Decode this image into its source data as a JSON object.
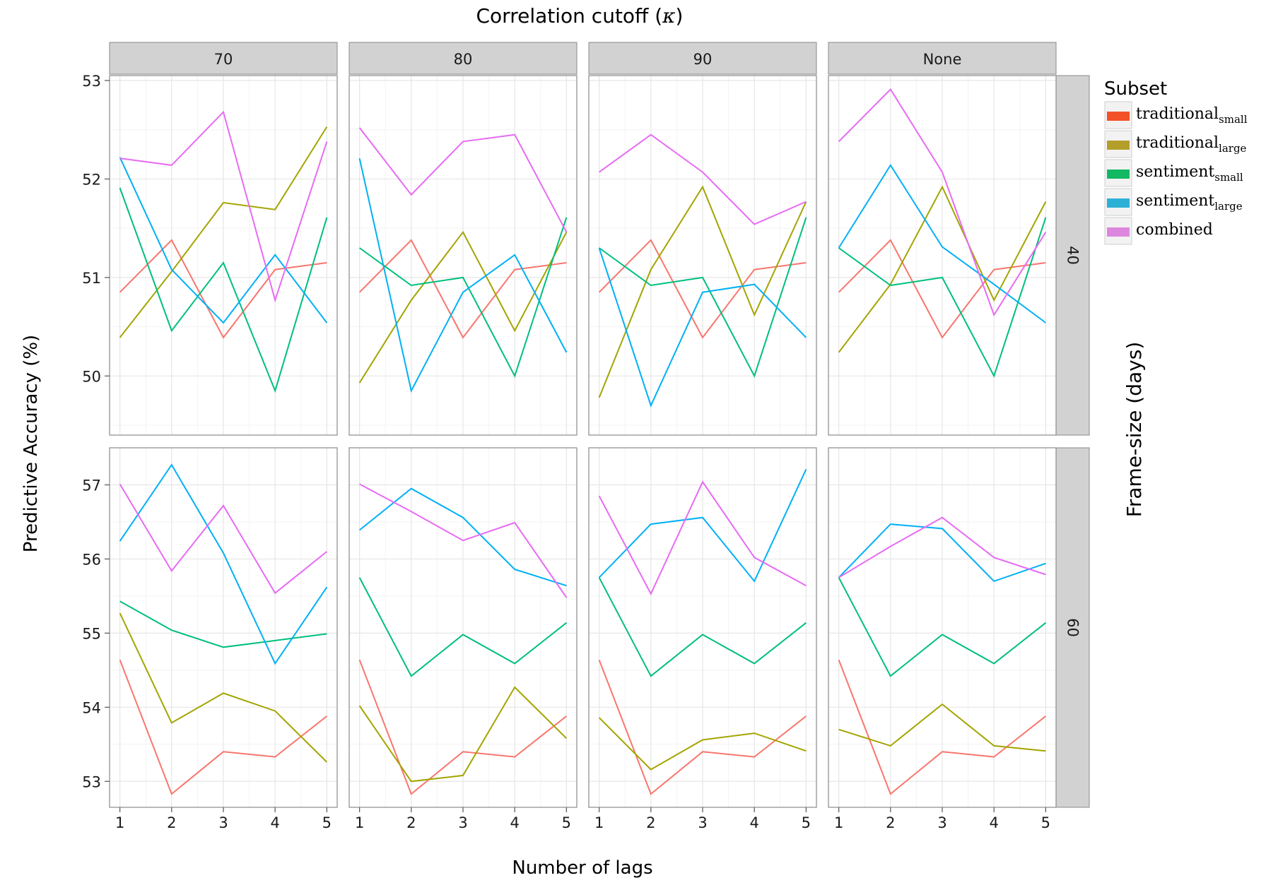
{
  "chart_data": {
    "type": "line",
    "title": "Correlation cutoff (κ)",
    "title_prefix": "Correlation cutoff",
    "title_symbol": "κ",
    "xlabel": "Number of lags",
    "ylabel": "Predictive Accuracy (%)",
    "row_facet_label": "Frame-size (days)",
    "col_facets": [
      "70",
      "80",
      "90",
      "None"
    ],
    "row_facets": [
      "40",
      "60"
    ],
    "x": [
      1,
      2,
      3,
      4,
      5
    ],
    "x_ticks": [
      "1",
      "2",
      "3",
      "4",
      "5"
    ],
    "x_range": [
      0.8,
      5.2
    ],
    "rows": [
      {
        "ylim": [
          49.4,
          53.05
        ],
        "y_ticks": [
          "50",
          "51",
          "52",
          "53"
        ],
        "y_tick_values": [
          50,
          51,
          52,
          53
        ]
      },
      {
        "ylim": [
          52.65,
          57.5
        ],
        "y_ticks": [
          "53",
          "54",
          "55",
          "56",
          "57"
        ],
        "y_tick_values": [
          53,
          54,
          55,
          56,
          57
        ]
      }
    ],
    "grid": true,
    "legend": {
      "title": "Subset",
      "position": "right",
      "items": [
        {
          "base": "traditional",
          "sub": "small",
          "color": "#F8766D",
          "key_color": "#F35127"
        },
        {
          "base": "traditional",
          "sub": "large",
          "color": "#A3A500",
          "key_color": "#B39E29"
        },
        {
          "base": "sentiment",
          "sub": "small",
          "color": "#00BF7D",
          "key_color": "#13B863"
        },
        {
          "base": "sentiment",
          "sub": "large",
          "color": "#00B0F6",
          "key_color": "#2CB0D6"
        },
        {
          "base": "combined",
          "sub": "",
          "color": "#E76BF3",
          "key_color": "#DC87DD"
        }
      ]
    },
    "panels": [
      {
        "row": 0,
        "col": 0,
        "series": [
          [
            50.85,
            51.38,
            50.39,
            51.08,
            51.15
          ],
          [
            50.39,
            51.06,
            51.76,
            51.69,
            52.53
          ],
          [
            51.91,
            50.46,
            51.15,
            49.85,
            51.61
          ],
          [
            52.22,
            51.08,
            50.54,
            51.23,
            50.54
          ],
          [
            52.21,
            52.14,
            52.68,
            50.77,
            52.38
          ]
        ]
      },
      {
        "row": 0,
        "col": 1,
        "series": [
          [
            50.85,
            51.38,
            50.39,
            51.08,
            51.15
          ],
          [
            49.93,
            50.77,
            51.46,
            50.46,
            51.46
          ],
          [
            51.3,
            50.92,
            51.0,
            50.0,
            51.61
          ],
          [
            52.21,
            49.85,
            50.85,
            51.23,
            50.24
          ],
          [
            52.52,
            51.84,
            52.38,
            52.45,
            51.46
          ]
        ]
      },
      {
        "row": 0,
        "col": 2,
        "series": [
          [
            50.85,
            51.38,
            50.39,
            51.08,
            51.15
          ],
          [
            49.78,
            51.08,
            51.92,
            50.62,
            51.77
          ],
          [
            51.3,
            50.92,
            51.0,
            50.0,
            51.61
          ],
          [
            51.3,
            49.7,
            50.85,
            50.93,
            50.39
          ],
          [
            52.07,
            52.45,
            52.07,
            51.54,
            51.77
          ]
        ]
      },
      {
        "row": 0,
        "col": 3,
        "series": [
          [
            50.85,
            51.38,
            50.39,
            51.08,
            51.15
          ],
          [
            50.24,
            50.93,
            51.92,
            50.77,
            51.77
          ],
          [
            51.3,
            50.92,
            51.0,
            50.0,
            51.61
          ],
          [
            51.3,
            52.14,
            51.31,
            50.93,
            50.54
          ],
          [
            52.38,
            52.91,
            52.07,
            50.62,
            51.46
          ]
        ]
      },
      {
        "row": 1,
        "col": 0,
        "series": [
          [
            54.64,
            52.83,
            53.4,
            53.33,
            53.88
          ],
          [
            55.27,
            53.79,
            54.19,
            53.95,
            53.26
          ],
          [
            55.43,
            55.04,
            54.81,
            54.9,
            54.99
          ],
          [
            56.24,
            57.27,
            56.08,
            54.59,
            55.62
          ],
          [
            57.01,
            55.84,
            56.72,
            55.54,
            56.1
          ]
        ]
      },
      {
        "row": 1,
        "col": 1,
        "series": [
          [
            54.64,
            52.83,
            53.4,
            53.33,
            53.88
          ],
          [
            54.02,
            53.0,
            53.08,
            54.27,
            53.58
          ],
          [
            55.75,
            54.42,
            54.98,
            54.59,
            55.14
          ],
          [
            56.39,
            56.95,
            56.56,
            55.86,
            55.64
          ],
          [
            57.01,
            56.64,
            56.25,
            56.49,
            55.48
          ]
        ]
      },
      {
        "row": 1,
        "col": 2,
        "series": [
          [
            54.64,
            52.83,
            53.4,
            53.33,
            53.88
          ],
          [
            53.86,
            53.16,
            53.56,
            53.65,
            53.41
          ],
          [
            55.75,
            54.42,
            54.98,
            54.59,
            55.14
          ],
          [
            55.75,
            56.47,
            56.56,
            55.7,
            57.21
          ],
          [
            56.85,
            55.53,
            57.04,
            56.02,
            55.64
          ]
        ]
      },
      {
        "row": 1,
        "col": 3,
        "series": [
          [
            54.64,
            52.83,
            53.4,
            53.33,
            53.88
          ],
          [
            53.7,
            53.48,
            54.04,
            53.48,
            53.41
          ],
          [
            55.75,
            54.42,
            54.98,
            54.59,
            55.14
          ],
          [
            55.75,
            56.47,
            56.41,
            55.7,
            55.94
          ],
          [
            55.75,
            56.17,
            56.56,
            56.02,
            55.79
          ]
        ]
      }
    ]
  }
}
